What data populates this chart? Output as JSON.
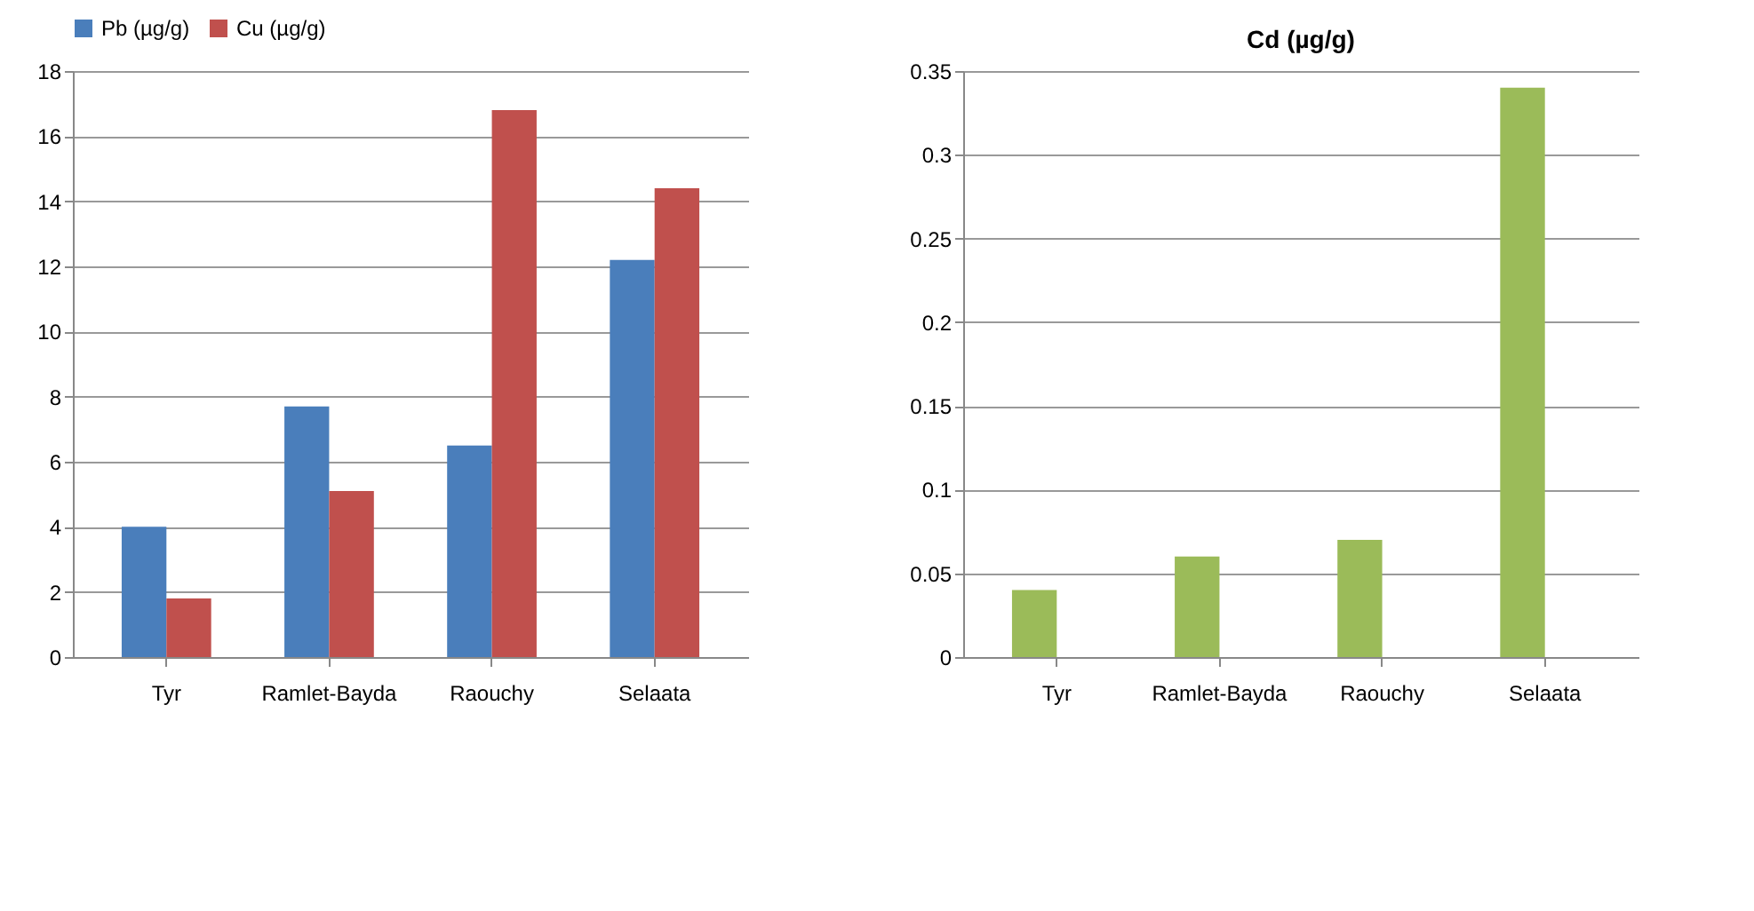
{
  "chart_data": [
    {
      "type": "bar",
      "categories": [
        "Tyr",
        "Ramlet-Bayda",
        "Raouchy",
        "Selaata"
      ],
      "series": [
        {
          "name": "Pb (µg/g)",
          "color": "#4a7ebb",
          "values": [
            4.0,
            7.7,
            6.5,
            12.2
          ]
        },
        {
          "name": "Cu (µg/g)",
          "color": "#c0504d",
          "values": [
            1.8,
            5.1,
            16.8,
            14.4
          ]
        }
      ],
      "ylim": [
        0,
        18
      ],
      "yticks": [
        0,
        2,
        4,
        6,
        8,
        10,
        12,
        14,
        16,
        18
      ],
      "grid": "y",
      "legend": "top"
    },
    {
      "type": "bar",
      "title": "Cd (µg/g)",
      "categories": [
        "Tyr",
        "Ramlet-Bayda",
        "Raouchy",
        "Selaata"
      ],
      "series": [
        {
          "color": "#9bbb59",
          "values": [
            0.04,
            0.06,
            0.07,
            0.34
          ]
        }
      ],
      "ylim": [
        0,
        0.35
      ],
      "yticks": [
        0,
        0.05,
        0.1,
        0.15,
        0.2,
        0.25,
        0.3,
        0.35
      ],
      "grid": "y"
    }
  ]
}
